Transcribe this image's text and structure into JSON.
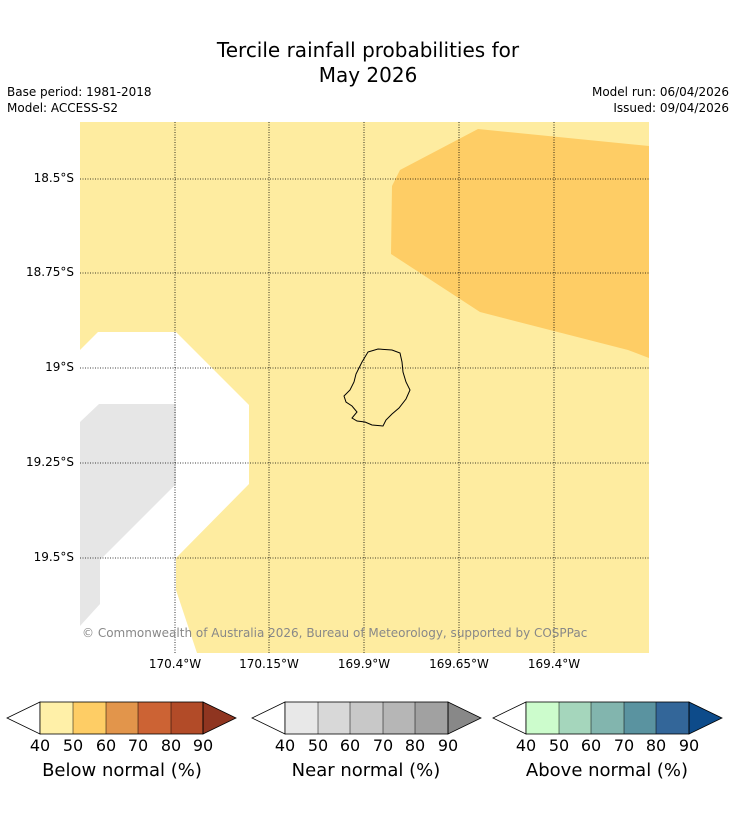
{
  "title_line1": "Tercile rainfall probabilities for",
  "title_line2": "May 2026",
  "base_period": "Base period: 1981-2018",
  "model": "Model: ACCESS-S2",
  "model_run": "Model run: 06/04/2026",
  "issued": "Issued: 09/04/2026",
  "copyright": "© Commonwealth of Australia 2026, Bureau of Meteorology, supported by COSPPac",
  "latitude_labels": [
    "18.5°S",
    "18.75°S",
    "19°S",
    "19.25°S",
    "19.5°S"
  ],
  "longitude_labels": [
    "170.4°W",
    "170.15°W",
    "169.9°W",
    "169.65°W",
    "169.4°W"
  ],
  "colorbars": [
    {
      "title": "Below normal (%)",
      "ticks": [
        "40",
        "50",
        "60",
        "70",
        "80",
        "90"
      ],
      "colors": [
        "#fff0a8",
        "#fecd65",
        "#e2954b",
        "#cc6334",
        "#b24b28",
        "#8f3520"
      ]
    },
    {
      "title": "Near normal (%)",
      "ticks": [
        "40",
        "50",
        "60",
        "70",
        "80",
        "90"
      ],
      "colors": [
        "#e8e8e8",
        "#d8d8d8",
        "#c8c8c8",
        "#b6b6b6",
        "#a1a1a1",
        "#888888"
      ]
    },
    {
      "title": "Above normal (%)",
      "ticks": [
        "40",
        "50",
        "60",
        "70",
        "80",
        "90"
      ],
      "colors": [
        "#ccfccc",
        "#a5d6bc",
        "#82b5ae",
        "#5a93a0",
        "#336699",
        "#0d4b8a"
      ]
    }
  ],
  "map_colors": {
    "below_40_50": "#feeca0",
    "below_50_60": "#fecd65",
    "near_40_50": "#e6e6e6",
    "no_signal": "#ffffff"
  }
}
